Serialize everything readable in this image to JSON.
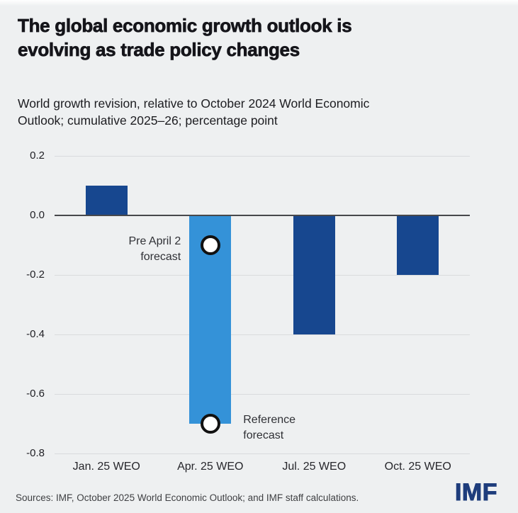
{
  "page": {
    "title": "The global economic growth outlook is\nevolving as trade policy changes",
    "subtitle": "World growth revision, relative to October 2024 World Economic\nOutlook; cumulative 2025–26; percentage point",
    "source_note": "Sources: IMF, October 2025 World Economic Outlook; and IMF staff calculations.",
    "logo_text": "IMF"
  },
  "colors": {
    "background": "#eef0f1",
    "grid_line": "#d9dbdd",
    "zero_line": "#47484b",
    "bar_dark_blue": "#17478f",
    "bar_light_blue": "#3492d8",
    "marker_fill": "#ffffff",
    "marker_border": "#111111",
    "logo_blue": "#1e3d7c"
  },
  "chart_data": {
    "type": "bar",
    "title": "World growth revision, relative to October 2024 World Economic Outlook; cumulative 2025–26; percentage point",
    "categories": [
      "Jan. 25 WEO",
      "Apr. 25 WEO",
      "Jul. 25 WEO",
      "Oct. 25 WEO"
    ],
    "values": [
      0.1,
      -0.7,
      -0.4,
      -0.2
    ],
    "bar_colors": [
      "#17478f",
      "#3492d8",
      "#17478f",
      "#17478f"
    ],
    "xlabel": "",
    "ylabel": "percentage point",
    "ylim": [
      -0.8,
      0.25
    ],
    "yticks": [
      0.2,
      0,
      -0.2,
      -0.4,
      -0.6,
      -0.8
    ],
    "ytick_labels": [
      "0.2",
      "0.0",
      "-0.2",
      "-0.4",
      "-0.6",
      "-0.8"
    ],
    "grid": true,
    "legend": "none",
    "markers": [
      {
        "name": "pre-april-2-forecast",
        "category_index": 1,
        "value": -0.1,
        "label": "Pre April 2\nforecast",
        "label_side": "left"
      },
      {
        "name": "reference-forecast",
        "category_index": 1,
        "value": -0.7,
        "label": "Reference\nforecast",
        "label_side": "right"
      }
    ]
  }
}
